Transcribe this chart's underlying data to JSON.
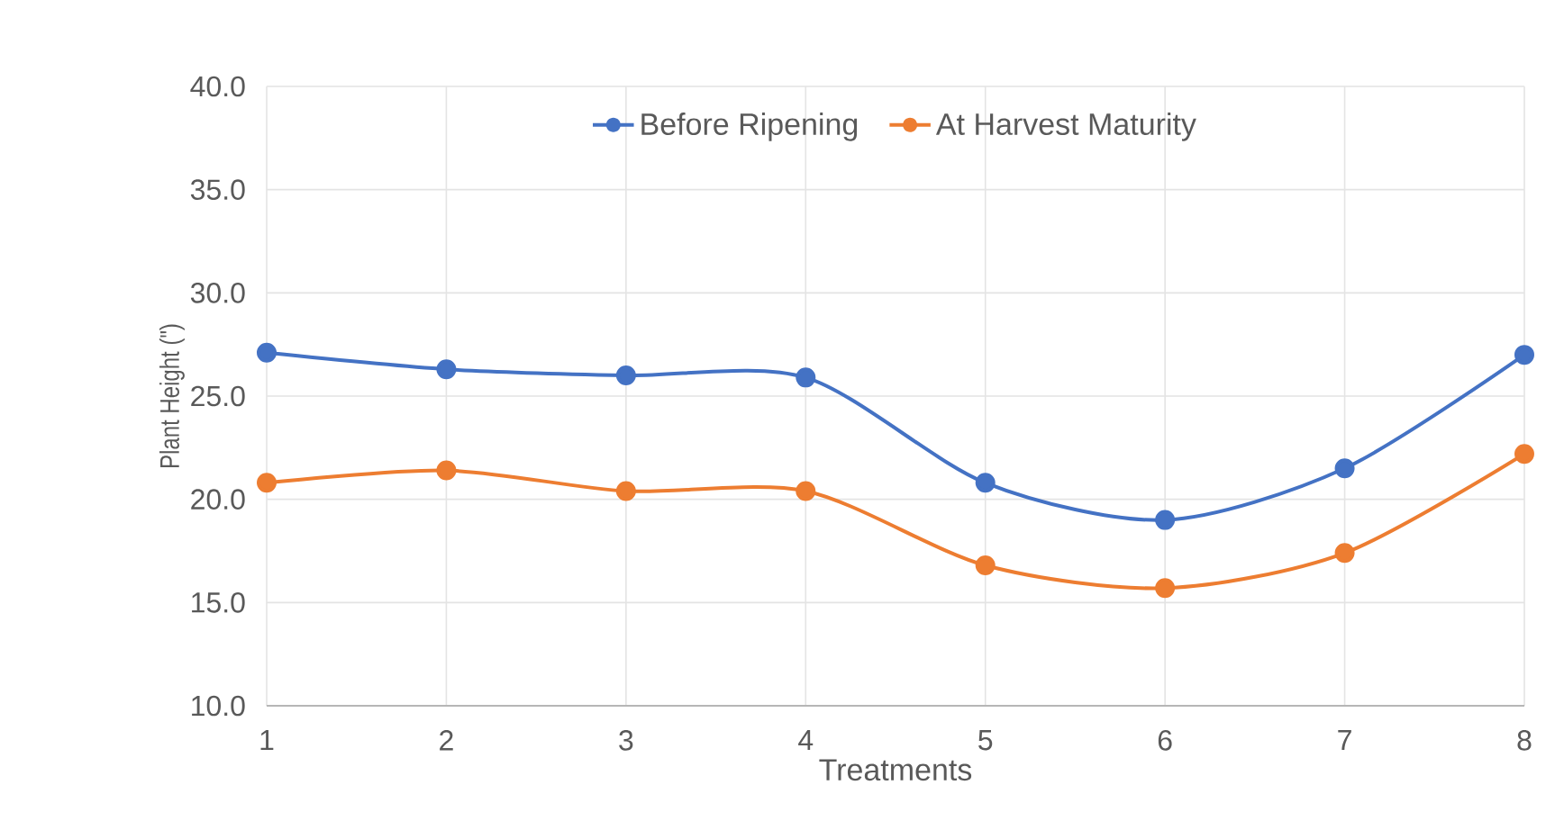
{
  "chart_data": {
    "type": "line",
    "xlabel": "Treatments",
    "ylabel": "Plant Height (\")",
    "categories": [
      "1",
      "2",
      "3",
      "4",
      "5",
      "6",
      "7",
      "8"
    ],
    "series": [
      {
        "name": "Before Ripening",
        "color": "#4472c4",
        "values": [
          27.1,
          26.3,
          26.0,
          25.9,
          20.8,
          19.0,
          21.5,
          27.0
        ]
      },
      {
        "name": "At Harvest Maturity",
        "color": "#ed7d31",
        "values": [
          20.8,
          21.4,
          20.4,
          20.4,
          16.8,
          15.7,
          17.4,
          22.2
        ]
      }
    ],
    "ylim": [
      10,
      40
    ],
    "yticks": [
      {
        "value": 10,
        "label": "10.0"
      },
      {
        "value": 15,
        "label": "15.0"
      },
      {
        "value": 20,
        "label": "20.0"
      },
      {
        "value": 25,
        "label": "25.0"
      },
      {
        "value": 30,
        "label": "30.0"
      },
      {
        "value": 35,
        "label": "35.0"
      },
      {
        "value": 40,
        "label": "40.0"
      }
    ],
    "grid": true,
    "legend": "top",
    "marker": "circle",
    "line_style": "solid"
  }
}
